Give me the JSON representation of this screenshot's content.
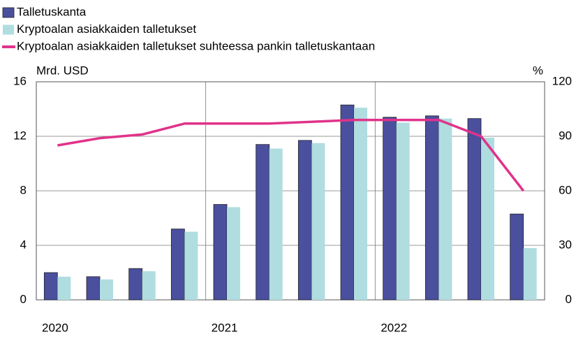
{
  "chart_data": {
    "type": "bar",
    "categories": [
      "2020",
      null,
      null,
      null,
      "2021",
      null,
      null,
      null,
      "2022",
      null,
      null,
      null
    ],
    "series": [
      {
        "name": "Talletuskanta",
        "type": "bar",
        "color": "#4a4f9e",
        "values": [
          2.0,
          1.7,
          2.3,
          5.2,
          7.0,
          11.4,
          11.7,
          14.3,
          13.4,
          13.5,
          13.3,
          6.3
        ]
      },
      {
        "name": "Kryptoalan asiakkaiden talletukset",
        "type": "bar",
        "color": "#b0dde0",
        "values": [
          1.7,
          1.5,
          2.1,
          5.0,
          6.8,
          11.1,
          11.5,
          14.1,
          13.0,
          13.3,
          11.9,
          3.8
        ]
      },
      {
        "name": "Kryptoalan asiakkaiden talletukset suhteessa pankin talletuskantaan",
        "type": "line",
        "axis": "y2",
        "color": "#e0338a",
        "values": [
          85,
          89,
          91,
          97,
          97,
          97,
          98,
          99,
          99,
          99,
          90,
          60
        ]
      }
    ],
    "ylabel": "Mrd. USD",
    "y2label": "%",
    "ylim": [
      0,
      16
    ],
    "yticks": [
      0,
      4,
      8,
      12,
      16
    ],
    "y2lim": [
      0,
      120
    ],
    "y2ticks": [
      0,
      30,
      60,
      90,
      120
    ],
    "grid": true
  }
}
